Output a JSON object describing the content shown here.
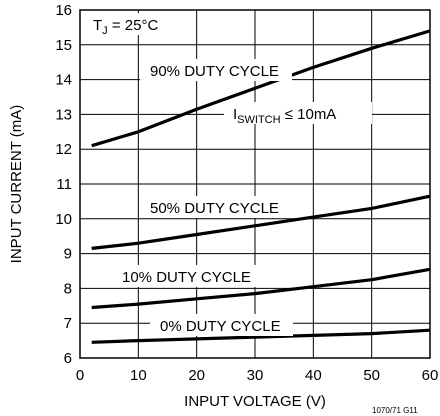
{
  "chart_data": {
    "type": "line",
    "xlabel": "INPUT VOLTAGE (V)",
    "ylabel": "INPUT CURRENT (mA)",
    "xlim": [
      0,
      60
    ],
    "ylim": [
      6,
      16
    ],
    "xticks": [
      "0",
      "10",
      "20",
      "30",
      "40",
      "50",
      "60"
    ],
    "yticks": [
      "6",
      "7",
      "8",
      "9",
      "10",
      "11",
      "12",
      "13",
      "14",
      "15",
      "16"
    ],
    "grid": true,
    "annotations": {
      "tj_prefix": "T",
      "tj_sub": "J",
      "tj_value": " = 25°C",
      "isw_prefix": "I",
      "isw_sub": "SWITCH",
      "isw_value": " ≤ 10mA"
    },
    "figure_code": "1070/71 G11",
    "series": [
      {
        "name": "90% DUTY CYCLE",
        "x": [
          2,
          10,
          20,
          30,
          40,
          50,
          60
        ],
        "y": [
          12.1,
          12.5,
          13.15,
          13.75,
          14.35,
          14.9,
          15.4
        ]
      },
      {
        "name": "50% DUTY CYCLE",
        "x": [
          2,
          10,
          20,
          30,
          40,
          50,
          60
        ],
        "y": [
          9.15,
          9.3,
          9.55,
          9.8,
          10.05,
          10.3,
          10.65
        ]
      },
      {
        "name": "10% DUTY CYCLE",
        "x": [
          2,
          10,
          20,
          30,
          40,
          50,
          60
        ],
        "y": [
          7.45,
          7.55,
          7.7,
          7.85,
          8.05,
          8.25,
          8.55
        ]
      },
      {
        "name": "0% DUTY CYCLE",
        "x": [
          2,
          10,
          20,
          30,
          40,
          50,
          60
        ],
        "y": [
          6.45,
          6.5,
          6.55,
          6.6,
          6.65,
          6.7,
          6.8
        ]
      }
    ]
  }
}
